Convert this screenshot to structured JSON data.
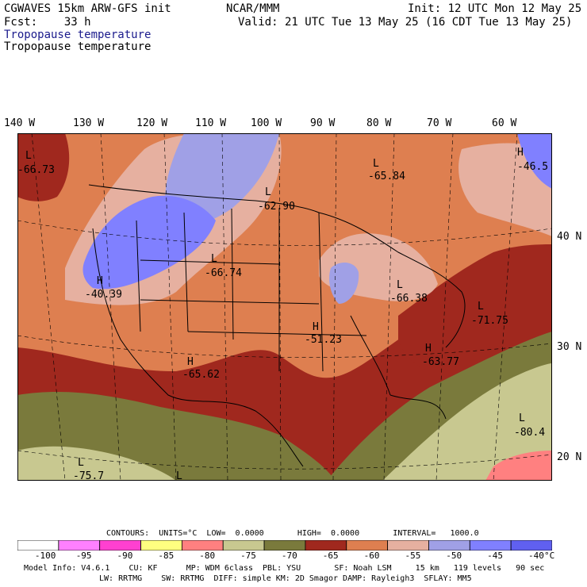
{
  "header": {
    "line1_left": "CGWAVES 15km ARW-GFS init",
    "line1_center": "NCAR/MMM",
    "line1_right": "Init: 12 UTC Mon 12 May 25",
    "line2_left": "Fcst:    33 h",
    "line2_right": "Valid: 21 UTC Tue 13 May 25 (16 CDT Tue 13 May 25)",
    "field_name_1": "Tropopause temperature",
    "field_name_2": "Tropopause temperature"
  },
  "longitude_labels": [
    "140 W",
    "130 W",
    "120 W",
    "110 W",
    "100 W",
    "90 W",
    "80 W",
    "70 W",
    "60 W"
  ],
  "latitude_labels": [
    "40 N",
    "30 N",
    "20 N"
  ],
  "map": {
    "extremes": [
      {
        "type": "L",
        "value": "-66.73"
      },
      {
        "type": "L",
        "value": "-65.84"
      },
      {
        "type": "H",
        "value": "-46.5"
      },
      {
        "type": "L",
        "value": "-62.90"
      },
      {
        "type": "L",
        "value": "-66.74"
      },
      {
        "type": "H",
        "value": "-40.39"
      },
      {
        "type": "L",
        "value": "-66.38"
      },
      {
        "type": "H",
        "value": "-51.23"
      },
      {
        "type": "L",
        "value": "-71.75"
      },
      {
        "type": "H",
        "value": "-63.77"
      },
      {
        "type": "H",
        "value": "-65.62"
      },
      {
        "type": "L",
        "value": "-80.4"
      },
      {
        "type": "L",
        "value": "-75.7"
      },
      {
        "type": "L",
        "value": ""
      }
    ]
  },
  "contours_line": "CONTOURS:  UNITS=°C  LOW=  0.0000       HIGH=  0.0000       INTERVAL=   1000.0",
  "colorbar": {
    "colors": [
      "#ffffff",
      "#ff80ff",
      "#ff40d0",
      "#ffff80",
      "#ff8080",
      "#c8c890",
      "#7a7a3c",
      "#a0281e",
      "#de7f50",
      "#e6b0a0",
      "#a0a0e6",
      "#8080ff",
      "#6060f0"
    ],
    "labels": [
      "-100",
      "-95",
      "-90",
      "-85",
      "-80",
      "-75",
      "-70",
      "-65",
      "-60",
      "-55",
      "-50",
      "-45",
      "-40",
      "°C"
    ]
  },
  "footer": {
    "line1": "Model Info: V4.6.1    CU: KF      MP: WDM 6class  PBL: YSU       SF: Noah LSM     15 km   119 levels   90 sec",
    "line2": "LW: RRTMG    SW: RRTMG  DIFF: simple KM: 2D Smagor DAMP: Rayleigh3  SFLAY: MM5"
  }
}
